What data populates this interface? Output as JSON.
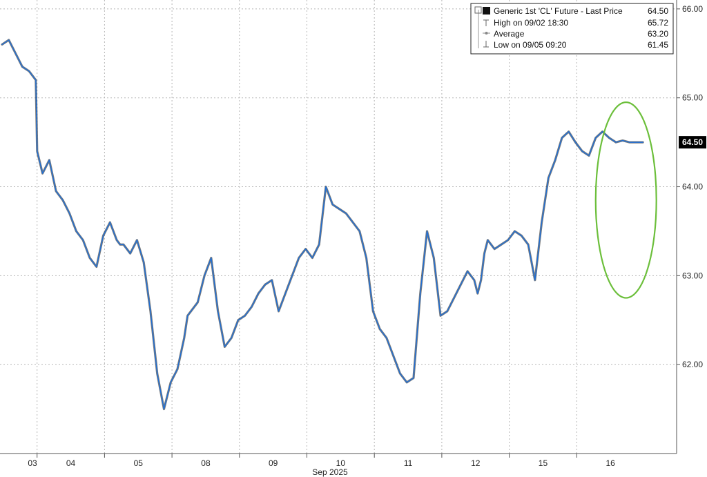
{
  "chart_data": {
    "type": "line",
    "title": "",
    "xlabel": "Sep 2025",
    "ylabel": "",
    "ylim": [
      61.0,
      66.1
    ],
    "y_ticks": [
      "62.00",
      "63.00",
      "64.00",
      "65.00",
      "66.00"
    ],
    "y_tick_values": [
      62.0,
      63.0,
      64.0,
      65.0,
      66.0
    ],
    "categories": [
      "03",
      "04",
      "05",
      "08",
      "09",
      "10",
      "11",
      "12",
      "15",
      "16"
    ],
    "grid": true,
    "legend_position": "top-right",
    "legend": {
      "series": {
        "label": "Generic 1st 'CL' Future - Last Price",
        "value": "64.50"
      },
      "high": {
        "label": "High on 09/02 18:30",
        "value": "65.72"
      },
      "average": {
        "label": "Average",
        "value": "63.20"
      },
      "low": {
        "label": "Low on 09/05 09:20",
        "value": "61.45"
      }
    },
    "last_price_label": "64.50",
    "series": [
      {
        "name": "Generic 1st 'CL' Future - Last Price",
        "x": [
          0.0,
          0.1,
          0.2,
          0.3,
          0.4,
          0.5,
          0.52,
          0.6,
          0.7,
          0.8,
          0.9,
          1.0,
          1.1,
          1.2,
          1.3,
          1.4,
          1.5,
          1.6,
          1.7,
          1.75,
          1.8,
          1.9,
          2.0,
          2.1,
          2.2,
          2.3,
          2.4,
          2.5,
          2.6,
          2.7,
          2.75,
          2.8,
          2.9,
          3.0,
          3.1,
          3.2,
          3.3,
          3.4,
          3.5,
          3.6,
          3.7,
          3.8,
          3.9,
          4.0,
          4.1,
          4.2,
          4.3,
          4.4,
          4.5,
          4.6,
          4.7,
          4.8,
          4.9,
          5.0,
          5.1,
          5.2,
          5.3,
          5.4,
          5.5,
          5.6,
          5.7,
          5.8,
          5.9,
          6.0,
          6.1,
          6.2,
          6.3,
          6.4,
          6.5,
          6.6,
          6.7,
          6.8,
          6.9,
          7.0,
          7.05,
          7.1,
          7.15,
          7.2,
          7.3,
          7.4,
          7.5,
          7.6,
          7.7,
          7.8,
          7.9,
          8.0,
          8.1,
          8.2,
          8.3,
          8.4,
          8.5,
          8.6,
          8.7,
          8.8,
          8.9,
          9.0,
          9.1,
          9.2,
          9.3,
          9.35,
          9.4,
          9.5
        ],
        "values": [
          65.6,
          65.65,
          65.5,
          65.35,
          65.3,
          65.2,
          64.4,
          64.15,
          64.3,
          63.95,
          63.85,
          63.7,
          63.5,
          63.4,
          63.2,
          63.1,
          63.45,
          63.6,
          63.4,
          63.35,
          63.35,
          63.25,
          63.4,
          63.15,
          62.6,
          61.9,
          61.5,
          61.8,
          61.95,
          62.3,
          62.55,
          62.6,
          62.7,
          63.0,
          63.2,
          62.6,
          62.2,
          62.3,
          62.5,
          62.55,
          62.65,
          62.8,
          62.9,
          62.95,
          62.6,
          62.8,
          63.0,
          63.2,
          63.3,
          63.2,
          63.35,
          64.0,
          63.8,
          63.75,
          63.7,
          63.6,
          63.5,
          63.2,
          62.6,
          62.4,
          62.3,
          62.1,
          61.9,
          61.8,
          61.85,
          62.8,
          63.5,
          63.2,
          62.55,
          62.6,
          62.75,
          62.9,
          63.05,
          62.95,
          62.8,
          62.95,
          63.25,
          63.4,
          63.3,
          63.35,
          63.4,
          63.5,
          63.45,
          63.35,
          62.95,
          63.6,
          64.1,
          64.3,
          64.55,
          64.62,
          64.5,
          64.4,
          64.35,
          64.55,
          64.62,
          64.55,
          64.5,
          64.52,
          64.5,
          64.5,
          64.5,
          64.5
        ]
      }
    ],
    "annotations": [
      {
        "type": "ellipse",
        "color": "#6cbf3b",
        "x_center": 9.25,
        "y_center": 63.85,
        "x_radius": 0.45,
        "y_radius": 1.1
      }
    ],
    "colors": {
      "line": "#1f6fd6",
      "line_dark": "#111111",
      "highlight": "#6cbf3b",
      "grid": "#b5b5b5",
      "axis": "#555555"
    }
  }
}
